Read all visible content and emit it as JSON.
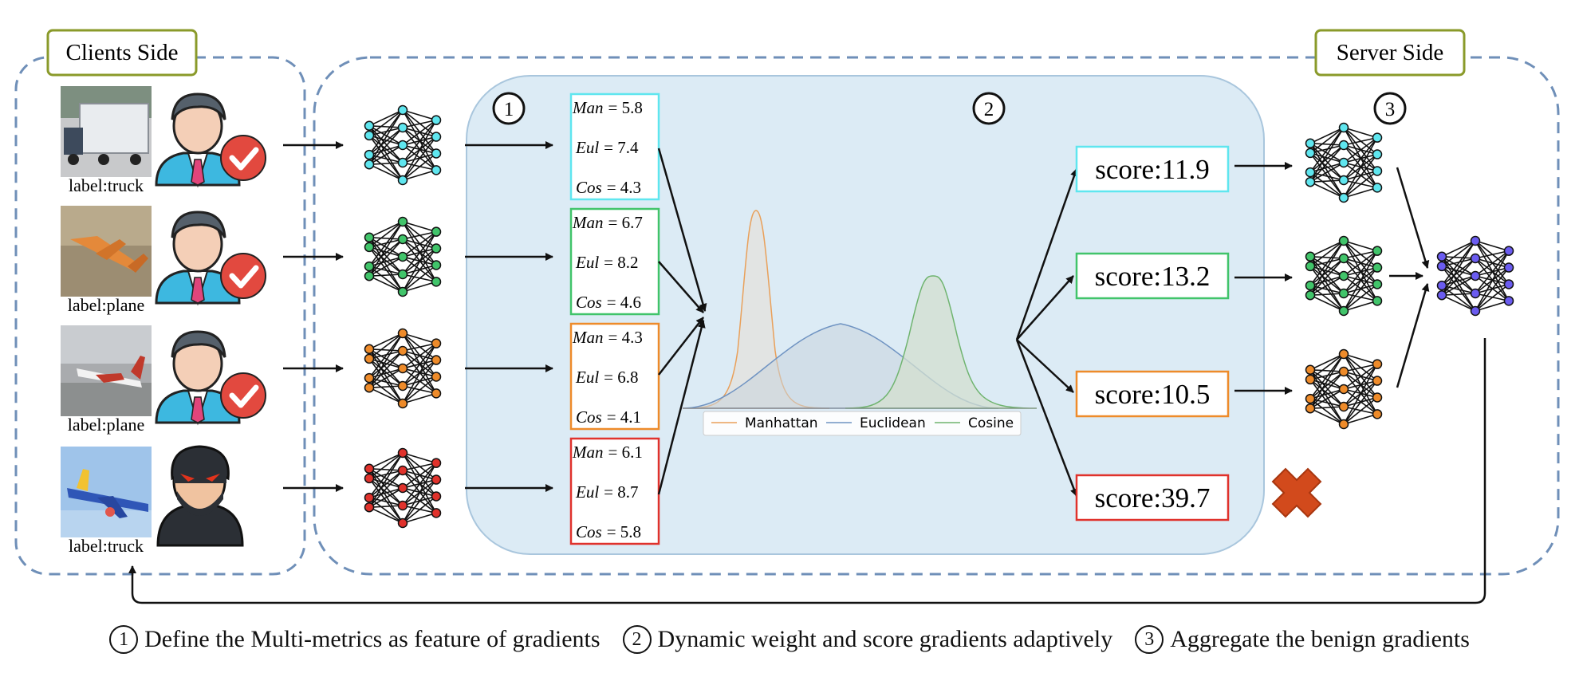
{
  "sides": {
    "clients": "Clients Side",
    "server": "Server Side"
  },
  "steps": [
    "1",
    "2",
    "3"
  ],
  "clients": [
    {
      "label": "label:truck",
      "role": "benign",
      "photo": "truck",
      "icon": "person-check-icon"
    },
    {
      "label": "label:plane",
      "role": "benign",
      "photo": "plane-orange",
      "icon": "person-check-icon"
    },
    {
      "label": "label:plane",
      "role": "benign",
      "photo": "plane-runway",
      "icon": "person-check-icon"
    },
    {
      "label": "label:truck",
      "role": "malicious",
      "photo": "plane-blue",
      "icon": "hacker-icon"
    }
  ],
  "metrics": [
    {
      "man": "= 5.8",
      "eul": "= 7.4",
      "cos": "= 4.3",
      "color": "#5fe6ef"
    },
    {
      "man": "= 6.7",
      "eul": "= 8.2",
      "cos": "= 4.6",
      "color": "#41c46a"
    },
    {
      "man": "= 4.3",
      "eul": "= 6.8",
      "cos": "= 4.1",
      "color": "#ee8b2a"
    },
    {
      "man": "= 6.1",
      "eul": "= 8.7",
      "cos": "= 5.8",
      "color": "#e0322c"
    }
  ],
  "metric_names": {
    "man": "Man",
    "eul": "Eul",
    "cos": "Cos"
  },
  "scores": [
    {
      "text": "score:11.9",
      "color": "#5fe6ef"
    },
    {
      "text": "score:13.2",
      "color": "#41c46a"
    },
    {
      "text": "score:10.5",
      "color": "#ee8b2a"
    },
    {
      "text": "score:39.7",
      "color": "#e0322c"
    }
  ],
  "distributions": {
    "legend": [
      "Manhattan",
      "Euclidean",
      "Cosine"
    ],
    "colors": [
      "#e9a05a",
      "#6f93c2",
      "#6fb46f"
    ]
  },
  "node_colors": [
    "#5fe6ef",
    "#41c46a",
    "#ee8b2a",
    "#e0322c",
    "#6b5cf0"
  ],
  "legend": [
    {
      "num": "1",
      "text": "Define the Multi-metrics as feature of gradients"
    },
    {
      "num": "2",
      "text": "Dynamic weight and score gradients adaptively"
    },
    {
      "num": "3",
      "text": "Aggregate the benign gradients"
    }
  ],
  "colors": {
    "dashed_border": "#6f8fb8",
    "side_label_border": "#8a9a2a",
    "panel_fill": "#dcebf5",
    "panel_stroke": "#a9c6dd",
    "reject": "#d24a1c"
  }
}
